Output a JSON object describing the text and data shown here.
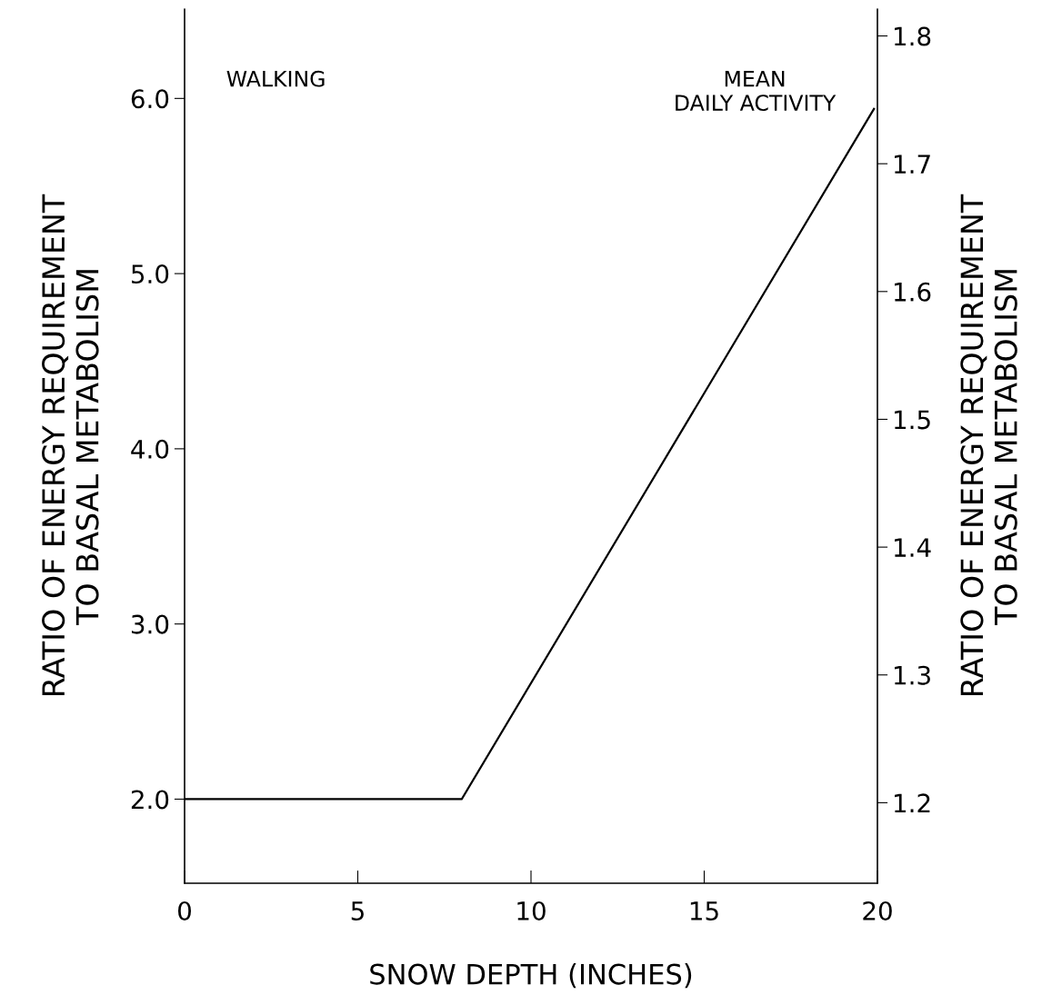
{
  "chart_data": {
    "type": "line",
    "xlabel": "SNOW DEPTH (INCHES)",
    "ylabel": "RATIO OF ENERGY REQUIREMENT\nTO BASAL METABOLISM",
    "y2label": "RATIO OF ENERGY REQUIREMENT\nTO BASAL METABOLISM",
    "annotations": [
      "WALKING",
      "MEAN\nDAILY ACTIVITY"
    ],
    "series": [
      {
        "color": "#000000",
        "x": [
          0,
          8,
          19.9
        ],
        "values": [
          2.0,
          2.0,
          5.94
        ]
      }
    ],
    "xlim": [
      0,
      20
    ],
    "xticks": [
      0,
      5,
      10,
      15,
      20
    ],
    "ylim": [
      1.52,
      6.51
    ],
    "yticks": [
      {
        "value": 2,
        "label": "2.0"
      },
      {
        "value": 3,
        "label": "3.0"
      },
      {
        "value": 4,
        "label": "4.0"
      },
      {
        "value": 5,
        "label": "5.0"
      },
      {
        "value": 6,
        "label": "6.0"
      }
    ],
    "y2lim": [
      1.137,
      1.821
    ],
    "y2ticks": [
      1.2,
      1.3,
      1.4,
      1.5,
      1.6,
      1.7,
      1.8
    ],
    "grid": false,
    "legend": false,
    "marker": "none",
    "line_style": "solid"
  }
}
